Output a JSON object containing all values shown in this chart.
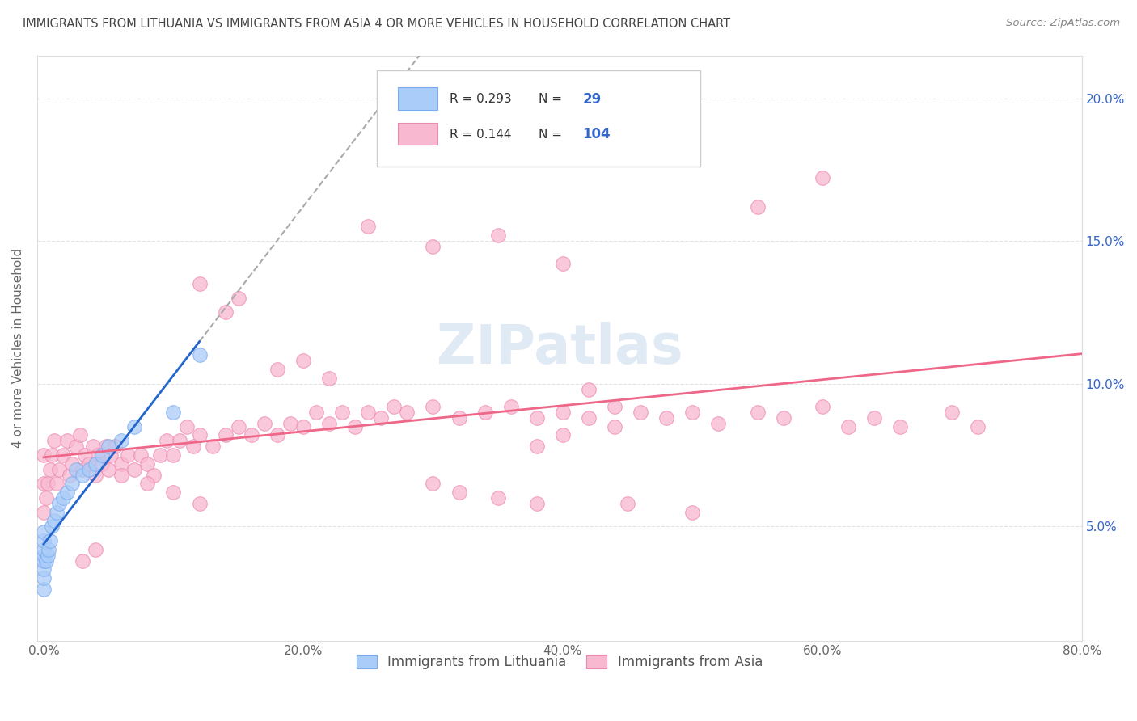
{
  "title": "IMMIGRANTS FROM LITHUANIA VS IMMIGRANTS FROM ASIA 4 OR MORE VEHICLES IN HOUSEHOLD CORRELATION CHART",
  "source": "Source: ZipAtlas.com",
  "ylabel": "4 or more Vehicles in Household",
  "xlim": [
    -0.005,
    0.8
  ],
  "ylim": [
    0.01,
    0.215
  ],
  "xtick_vals": [
    0.0,
    0.2,
    0.4,
    0.6,
    0.8
  ],
  "xtick_labels": [
    "0.0%",
    "20.0%",
    "40.0%",
    "60.0%",
    "80.0%"
  ],
  "ytick_vals": [
    0.05,
    0.1,
    0.15,
    0.2
  ],
  "ytick_labels": [
    "5.0%",
    "10.0%",
    "15.0%",
    "20.0%"
  ],
  "R_blue": 0.293,
  "N_blue": 29,
  "R_pink": 0.144,
  "N_pink": 104,
  "legend_labels": [
    "Immigrants from Lithuania",
    "Immigrants from Asia"
  ],
  "blue_color": "#aaccf8",
  "pink_color": "#f8b8d0",
  "blue_edge_color": "#7aabee",
  "pink_edge_color": "#ee88b0",
  "blue_line_color": "#2266cc",
  "pink_line_color": "#ee6688",
  "grey_dash_color": "#aaaaaa",
  "title_color": "#444444",
  "axis_label_color": "#666666",
  "right_tick_color": "#3366cc",
  "watermark_text": "ZIPatlas",
  "watermark_color": "#ccddee",
  "background_color": "#ffffff",
  "grid_color": "#dddddd",
  "blue_x": [
    0.0,
    0.0,
    0.0,
    0.0,
    0.0,
    0.0,
    0.0,
    0.0,
    0.002,
    0.003,
    0.004,
    0.005,
    0.006,
    0.008,
    0.01,
    0.012,
    0.015,
    0.018,
    0.022,
    0.025,
    0.03,
    0.035,
    0.04,
    0.045,
    0.05,
    0.06,
    0.07,
    0.1,
    0.12
  ],
  "blue_y": [
    0.028,
    0.032,
    0.035,
    0.038,
    0.04,
    0.042,
    0.045,
    0.048,
    0.038,
    0.04,
    0.042,
    0.045,
    0.05,
    0.052,
    0.055,
    0.058,
    0.06,
    0.062,
    0.065,
    0.07,
    0.068,
    0.07,
    0.072,
    0.075,
    0.078,
    0.08,
    0.085,
    0.09,
    0.11
  ],
  "pink_x": [
    0.0,
    0.0,
    0.0,
    0.002,
    0.003,
    0.005,
    0.006,
    0.008,
    0.01,
    0.012,
    0.015,
    0.018,
    0.02,
    0.022,
    0.025,
    0.028,
    0.03,
    0.032,
    0.035,
    0.038,
    0.04,
    0.042,
    0.045,
    0.048,
    0.05,
    0.052,
    0.055,
    0.06,
    0.065,
    0.07,
    0.075,
    0.08,
    0.085,
    0.09,
    0.095,
    0.1,
    0.105,
    0.11,
    0.115,
    0.12,
    0.13,
    0.14,
    0.15,
    0.16,
    0.17,
    0.18,
    0.19,
    0.2,
    0.21,
    0.22,
    0.23,
    0.24,
    0.25,
    0.26,
    0.27,
    0.28,
    0.3,
    0.32,
    0.34,
    0.36,
    0.38,
    0.38,
    0.4,
    0.4,
    0.42,
    0.44,
    0.46,
    0.48,
    0.5,
    0.52,
    0.55,
    0.57,
    0.6,
    0.62,
    0.64,
    0.66,
    0.7,
    0.72,
    0.55,
    0.6,
    0.25,
    0.3,
    0.35,
    0.4,
    0.42,
    0.44,
    0.18,
    0.2,
    0.22,
    0.12,
    0.14,
    0.15,
    0.3,
    0.35,
    0.38,
    0.32,
    0.45,
    0.5,
    0.1,
    0.12,
    0.08,
    0.06,
    0.04,
    0.03
  ],
  "pink_y": [
    0.055,
    0.065,
    0.075,
    0.06,
    0.065,
    0.07,
    0.075,
    0.08,
    0.065,
    0.07,
    0.075,
    0.08,
    0.068,
    0.072,
    0.078,
    0.082,
    0.07,
    0.075,
    0.072,
    0.078,
    0.068,
    0.075,
    0.072,
    0.078,
    0.07,
    0.075,
    0.078,
    0.072,
    0.075,
    0.07,
    0.075,
    0.072,
    0.068,
    0.075,
    0.08,
    0.075,
    0.08,
    0.085,
    0.078,
    0.082,
    0.078,
    0.082,
    0.085,
    0.082,
    0.086,
    0.082,
    0.086,
    0.085,
    0.09,
    0.086,
    0.09,
    0.085,
    0.09,
    0.088,
    0.092,
    0.09,
    0.092,
    0.088,
    0.09,
    0.092,
    0.088,
    0.078,
    0.09,
    0.082,
    0.088,
    0.085,
    0.09,
    0.088,
    0.09,
    0.086,
    0.09,
    0.088,
    0.092,
    0.085,
    0.088,
    0.085,
    0.09,
    0.085,
    0.162,
    0.172,
    0.155,
    0.148,
    0.152,
    0.142,
    0.098,
    0.092,
    0.105,
    0.108,
    0.102,
    0.135,
    0.125,
    0.13,
    0.065,
    0.06,
    0.058,
    0.062,
    0.058,
    0.055,
    0.062,
    0.058,
    0.065,
    0.068,
    0.042,
    0.038
  ]
}
